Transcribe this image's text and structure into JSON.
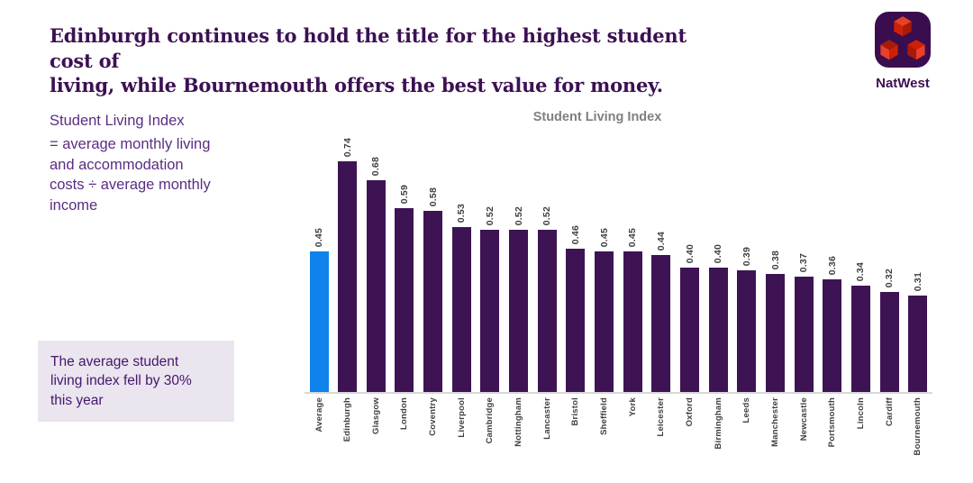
{
  "header": {
    "title": "Edinburgh continues to hold the title for the highest student cost of\nliving, while Bournemouth offers the best value for money."
  },
  "logo": {
    "brand": "NatWest"
  },
  "sidebar": {
    "heading": "Student Living Index",
    "definition": "= average monthly living\nand accommodation\ncosts ÷ average monthly\nincome"
  },
  "callout": {
    "text": "The average student\nliving index fell by 30%\nthis year"
  },
  "chart_data": {
    "type": "bar",
    "title": "Student Living Index",
    "categories": [
      "Average",
      "Edinburgh",
      "Glasgow",
      "London",
      "Coventry",
      "Liverpool",
      "Cambridge",
      "Nottingham",
      "Lancaster",
      "Bristol",
      "Sheffield",
      "York",
      "Leicester",
      "Oxford",
      "Birmingham",
      "Leeds",
      "Manchester",
      "Newcastle",
      "Portsmouth",
      "Lincoln",
      "Cardiff",
      "Bournemouth"
    ],
    "values": [
      0.45,
      0.74,
      0.68,
      0.59,
      0.58,
      0.53,
      0.52,
      0.52,
      0.52,
      0.46,
      0.45,
      0.45,
      0.44,
      0.4,
      0.4,
      0.39,
      0.38,
      0.37,
      0.36,
      0.34,
      0.32,
      0.31
    ],
    "highlight_category": "Average",
    "value_labels_shown": true,
    "label_rotation_degrees": 90,
    "xlabel": "",
    "ylabel": "",
    "y_axis_visible": false,
    "grid": false,
    "legend": "none"
  },
  "colors": {
    "bar": "#3e1354",
    "highlight_bar": "#0f82ec",
    "headline_text": "#3c1053",
    "sidebar_text": "#5a2d83",
    "callout_bg": "#eae5ef",
    "chart_title_text": "#7f7f7f",
    "axis_line": "#d8d8d8",
    "value_label_text": "#3f3f3f",
    "logo_square": "#3a0d4f",
    "logo_cube_top": "#e8402a",
    "logo_cube_left": "#cf2005",
    "logo_cube_right": "#a81b07"
  }
}
